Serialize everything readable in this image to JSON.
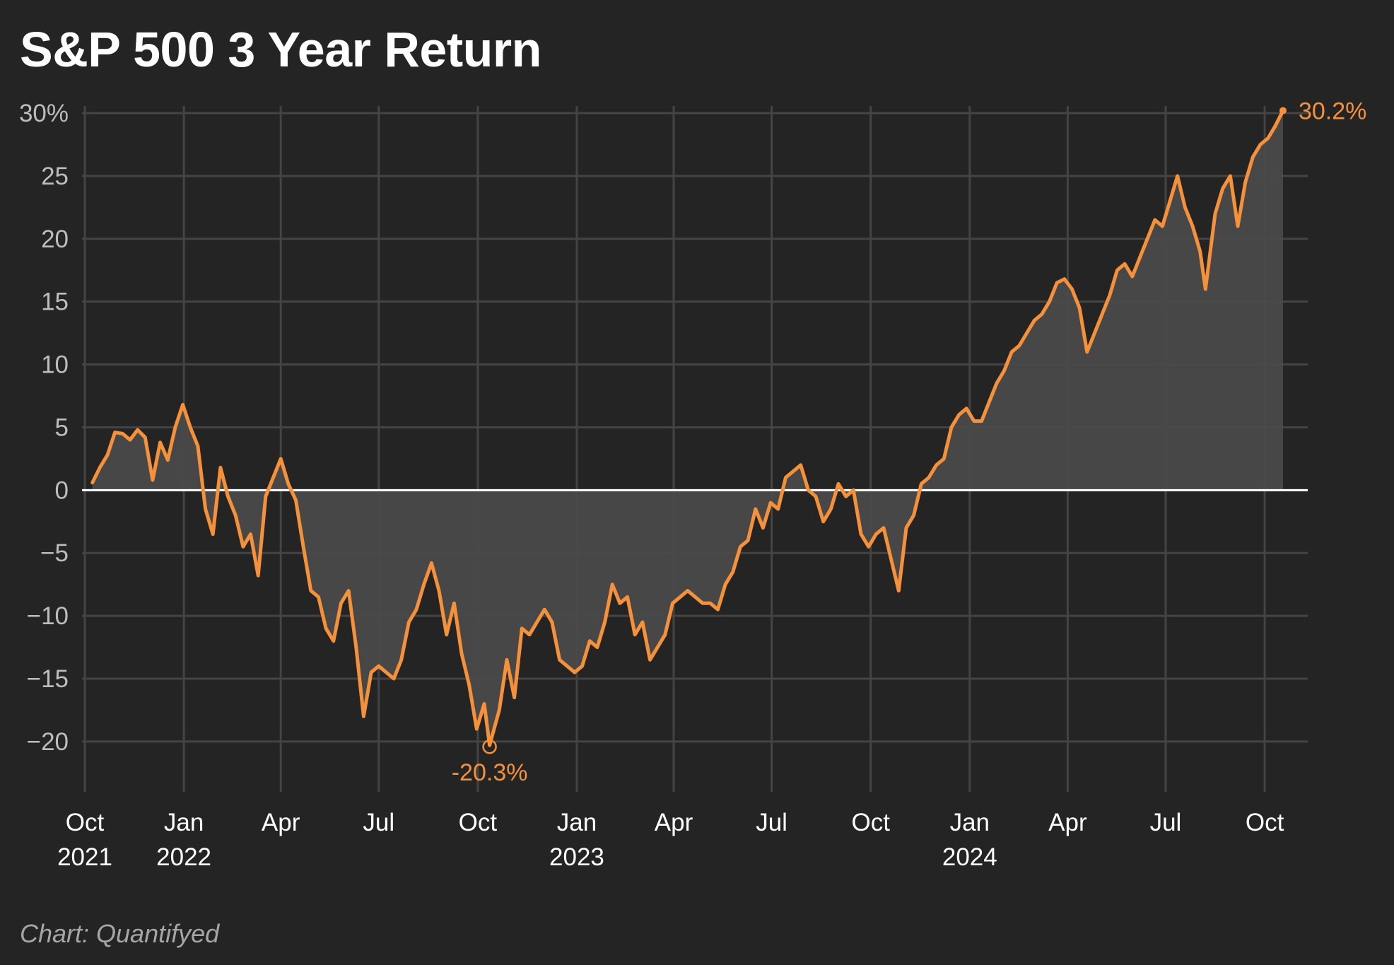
{
  "title": "S&P 500 3 Year Return",
  "source": "Chart: Quantifyed",
  "colors": {
    "background": "#242424",
    "line": "#f5913a",
    "area": "#4a4a4a",
    "grid": "#444444",
    "zero_line": "#ffffff"
  },
  "chart_data": {
    "type": "area",
    "y_unit": "%",
    "ylim": [
      -24,
      30
    ],
    "xlim": [
      "2021-10-01",
      "2024-11-10"
    ],
    "grid": true,
    "y_ticks": [
      {
        "value": 30,
        "label": "30%"
      },
      {
        "value": 25,
        "label": "25"
      },
      {
        "value": 20,
        "label": "20"
      },
      {
        "value": 15,
        "label": "15"
      },
      {
        "value": 10,
        "label": "10"
      },
      {
        "value": 5,
        "label": "5"
      },
      {
        "value": 0,
        "label": "0"
      },
      {
        "value": -5,
        "label": "−5"
      },
      {
        "value": -10,
        "label": "−10"
      },
      {
        "value": -15,
        "label": "−15"
      },
      {
        "value": -20,
        "label": "−20"
      }
    ],
    "x_ticks": [
      {
        "date": "2021-10-01",
        "label": "Oct",
        "year": "2021"
      },
      {
        "date": "2022-01-01",
        "label": "Jan",
        "year": "2022"
      },
      {
        "date": "2022-04-01",
        "label": "Apr",
        "year": ""
      },
      {
        "date": "2022-07-01",
        "label": "Jul",
        "year": ""
      },
      {
        "date": "2022-10-01",
        "label": "Oct",
        "year": ""
      },
      {
        "date": "2023-01-01",
        "label": "Jan",
        "year": "2023"
      },
      {
        "date": "2023-04-01",
        "label": "Apr",
        "year": ""
      },
      {
        "date": "2023-07-01",
        "label": "Jul",
        "year": ""
      },
      {
        "date": "2023-10-01",
        "label": "Oct",
        "year": ""
      },
      {
        "date": "2024-01-01",
        "label": "Jan",
        "year": "2024"
      },
      {
        "date": "2024-04-01",
        "label": "Apr",
        "year": ""
      },
      {
        "date": "2024-07-01",
        "label": "Jul",
        "year": ""
      },
      {
        "date": "2024-10-01",
        "label": "Oct",
        "year": ""
      }
    ],
    "annotations": [
      {
        "date": "2022-10-12",
        "value": -20.3,
        "label": "-20.3%",
        "type": "min"
      },
      {
        "date": "2024-10-18",
        "value": 30.2,
        "label": "30.2%",
        "type": "last"
      }
    ],
    "series": [
      {
        "points": [
          [
            "2021-10-08",
            0.6
          ],
          [
            "2021-10-15",
            1.8
          ],
          [
            "2021-10-22",
            2.8
          ],
          [
            "2021-10-29",
            4.6
          ],
          [
            "2021-11-05",
            4.5
          ],
          [
            "2021-11-12",
            4.0
          ],
          [
            "2021-11-19",
            4.8
          ],
          [
            "2021-11-26",
            4.2
          ],
          [
            "2021-12-03",
            0.8
          ],
          [
            "2021-12-10",
            3.8
          ],
          [
            "2021-12-17",
            2.4
          ],
          [
            "2021-12-24",
            5.0
          ],
          [
            "2021-12-31",
            6.8
          ],
          [
            "2022-01-07",
            5.0
          ],
          [
            "2022-01-14",
            3.5
          ],
          [
            "2022-01-21",
            -1.5
          ],
          [
            "2022-01-28",
            -3.5
          ],
          [
            "2022-02-04",
            1.8
          ],
          [
            "2022-02-11",
            -0.5
          ],
          [
            "2022-02-18",
            -2.0
          ],
          [
            "2022-02-25",
            -4.5
          ],
          [
            "2022-03-04",
            -3.5
          ],
          [
            "2022-03-11",
            -6.8
          ],
          [
            "2022-03-18",
            -0.5
          ],
          [
            "2022-03-25",
            1.0
          ],
          [
            "2022-04-01",
            2.5
          ],
          [
            "2022-04-08",
            0.5
          ],
          [
            "2022-04-15",
            -0.8
          ],
          [
            "2022-04-22",
            -4.5
          ],
          [
            "2022-04-29",
            -8.0
          ],
          [
            "2022-05-06",
            -8.5
          ],
          [
            "2022-05-13",
            -11.0
          ],
          [
            "2022-05-20",
            -12.0
          ],
          [
            "2022-05-27",
            -9.0
          ],
          [
            "2022-06-03",
            -8.0
          ],
          [
            "2022-06-10",
            -12.5
          ],
          [
            "2022-06-17",
            -18.0
          ],
          [
            "2022-06-24",
            -14.5
          ],
          [
            "2022-07-01",
            -14.0
          ],
          [
            "2022-07-08",
            -14.5
          ],
          [
            "2022-07-15",
            -15.0
          ],
          [
            "2022-07-22",
            -13.5
          ],
          [
            "2022-07-29",
            -10.5
          ],
          [
            "2022-08-05",
            -9.5
          ],
          [
            "2022-08-12",
            -7.5
          ],
          [
            "2022-08-19",
            -5.8
          ],
          [
            "2022-08-26",
            -8.0
          ],
          [
            "2022-09-02",
            -11.5
          ],
          [
            "2022-09-09",
            -9.0
          ],
          [
            "2022-09-16",
            -13.0
          ],
          [
            "2022-09-23",
            -15.5
          ],
          [
            "2022-09-30",
            -19.0
          ],
          [
            "2022-10-07",
            -17.0
          ],
          [
            "2022-10-12",
            -20.3
          ],
          [
            "2022-10-21",
            -17.5
          ],
          [
            "2022-10-28",
            -13.5
          ],
          [
            "2022-11-04",
            -16.5
          ],
          [
            "2022-11-11",
            -11.0
          ],
          [
            "2022-11-18",
            -11.5
          ],
          [
            "2022-11-25",
            -10.5
          ],
          [
            "2022-12-02",
            -9.5
          ],
          [
            "2022-12-09",
            -10.5
          ],
          [
            "2022-12-16",
            -13.5
          ],
          [
            "2022-12-23",
            -14.0
          ],
          [
            "2022-12-30",
            -14.5
          ],
          [
            "2023-01-06",
            -14.0
          ],
          [
            "2023-01-13",
            -12.0
          ],
          [
            "2023-01-20",
            -12.5
          ],
          [
            "2023-01-27",
            -10.5
          ],
          [
            "2023-02-03",
            -7.5
          ],
          [
            "2023-02-10",
            -9.0
          ],
          [
            "2023-02-17",
            -8.5
          ],
          [
            "2023-02-24",
            -11.5
          ],
          [
            "2023-03-03",
            -10.5
          ],
          [
            "2023-03-10",
            -13.5
          ],
          [
            "2023-03-17",
            -12.5
          ],
          [
            "2023-03-24",
            -11.5
          ],
          [
            "2023-03-31",
            -9.0
          ],
          [
            "2023-04-07",
            -8.5
          ],
          [
            "2023-04-14",
            -8.0
          ],
          [
            "2023-04-21",
            -8.5
          ],
          [
            "2023-04-28",
            -9.0
          ],
          [
            "2023-05-05",
            -9.0
          ],
          [
            "2023-05-12",
            -9.5
          ],
          [
            "2023-05-19",
            -7.5
          ],
          [
            "2023-05-26",
            -6.5
          ],
          [
            "2023-06-02",
            -4.5
          ],
          [
            "2023-06-09",
            -4.0
          ],
          [
            "2023-06-16",
            -1.5
          ],
          [
            "2023-06-23",
            -3.0
          ],
          [
            "2023-06-30",
            -1.0
          ],
          [
            "2023-07-07",
            -1.5
          ],
          [
            "2023-07-14",
            1.0
          ],
          [
            "2023-07-21",
            1.5
          ],
          [
            "2023-07-28",
            2.0
          ],
          [
            "2023-08-04",
            0.0
          ],
          [
            "2023-08-11",
            -0.5
          ],
          [
            "2023-08-18",
            -2.5
          ],
          [
            "2023-08-25",
            -1.5
          ],
          [
            "2023-09-01",
            0.5
          ],
          [
            "2023-09-08",
            -0.5
          ],
          [
            "2023-09-15",
            0.0
          ],
          [
            "2023-09-22",
            -3.5
          ],
          [
            "2023-09-29",
            -4.5
          ],
          [
            "2023-10-06",
            -3.5
          ],
          [
            "2023-10-13",
            -3.0
          ],
          [
            "2023-10-20",
            -5.5
          ],
          [
            "2023-10-27",
            -8.0
          ],
          [
            "2023-11-03",
            -3.0
          ],
          [
            "2023-11-10",
            -2.0
          ],
          [
            "2023-11-17",
            0.5
          ],
          [
            "2023-11-24",
            1.0
          ],
          [
            "2023-12-01",
            2.0
          ],
          [
            "2023-12-08",
            2.5
          ],
          [
            "2023-12-15",
            5.0
          ],
          [
            "2023-12-22",
            6.0
          ],
          [
            "2023-12-29",
            6.5
          ],
          [
            "2024-01-05",
            5.5
          ],
          [
            "2024-01-12",
            5.5
          ],
          [
            "2024-01-19",
            7.0
          ],
          [
            "2024-01-26",
            8.5
          ],
          [
            "2024-02-02",
            9.5
          ],
          [
            "2024-02-09",
            11.0
          ],
          [
            "2024-02-16",
            11.5
          ],
          [
            "2024-02-23",
            12.5
          ],
          [
            "2024-03-01",
            13.5
          ],
          [
            "2024-03-08",
            14.0
          ],
          [
            "2024-03-15",
            15.0
          ],
          [
            "2024-03-22",
            16.5
          ],
          [
            "2024-03-29",
            16.8
          ],
          [
            "2024-04-05",
            16.0
          ],
          [
            "2024-04-12",
            14.5
          ],
          [
            "2024-04-19",
            11.0
          ],
          [
            "2024-04-26",
            12.5
          ],
          [
            "2024-05-03",
            14.0
          ],
          [
            "2024-05-10",
            15.5
          ],
          [
            "2024-05-17",
            17.5
          ],
          [
            "2024-05-24",
            18.0
          ],
          [
            "2024-05-31",
            17.0
          ],
          [
            "2024-06-07",
            18.5
          ],
          [
            "2024-06-14",
            20.0
          ],
          [
            "2024-06-21",
            21.5
          ],
          [
            "2024-06-28",
            21.0
          ],
          [
            "2024-07-05",
            23.0
          ],
          [
            "2024-07-12",
            25.0
          ],
          [
            "2024-07-19",
            22.5
          ],
          [
            "2024-07-26",
            21.0
          ],
          [
            "2024-08-02",
            19.0
          ],
          [
            "2024-08-07",
            16.0
          ],
          [
            "2024-08-16",
            22.0
          ],
          [
            "2024-08-23",
            24.0
          ],
          [
            "2024-08-30",
            25.0
          ],
          [
            "2024-09-06",
            21.0
          ],
          [
            "2024-09-13",
            24.5
          ],
          [
            "2024-09-20",
            26.5
          ],
          [
            "2024-09-27",
            27.5
          ],
          [
            "2024-10-04",
            28.0
          ],
          [
            "2024-10-11",
            29.0
          ],
          [
            "2024-10-18",
            30.2
          ]
        ]
      }
    ]
  }
}
